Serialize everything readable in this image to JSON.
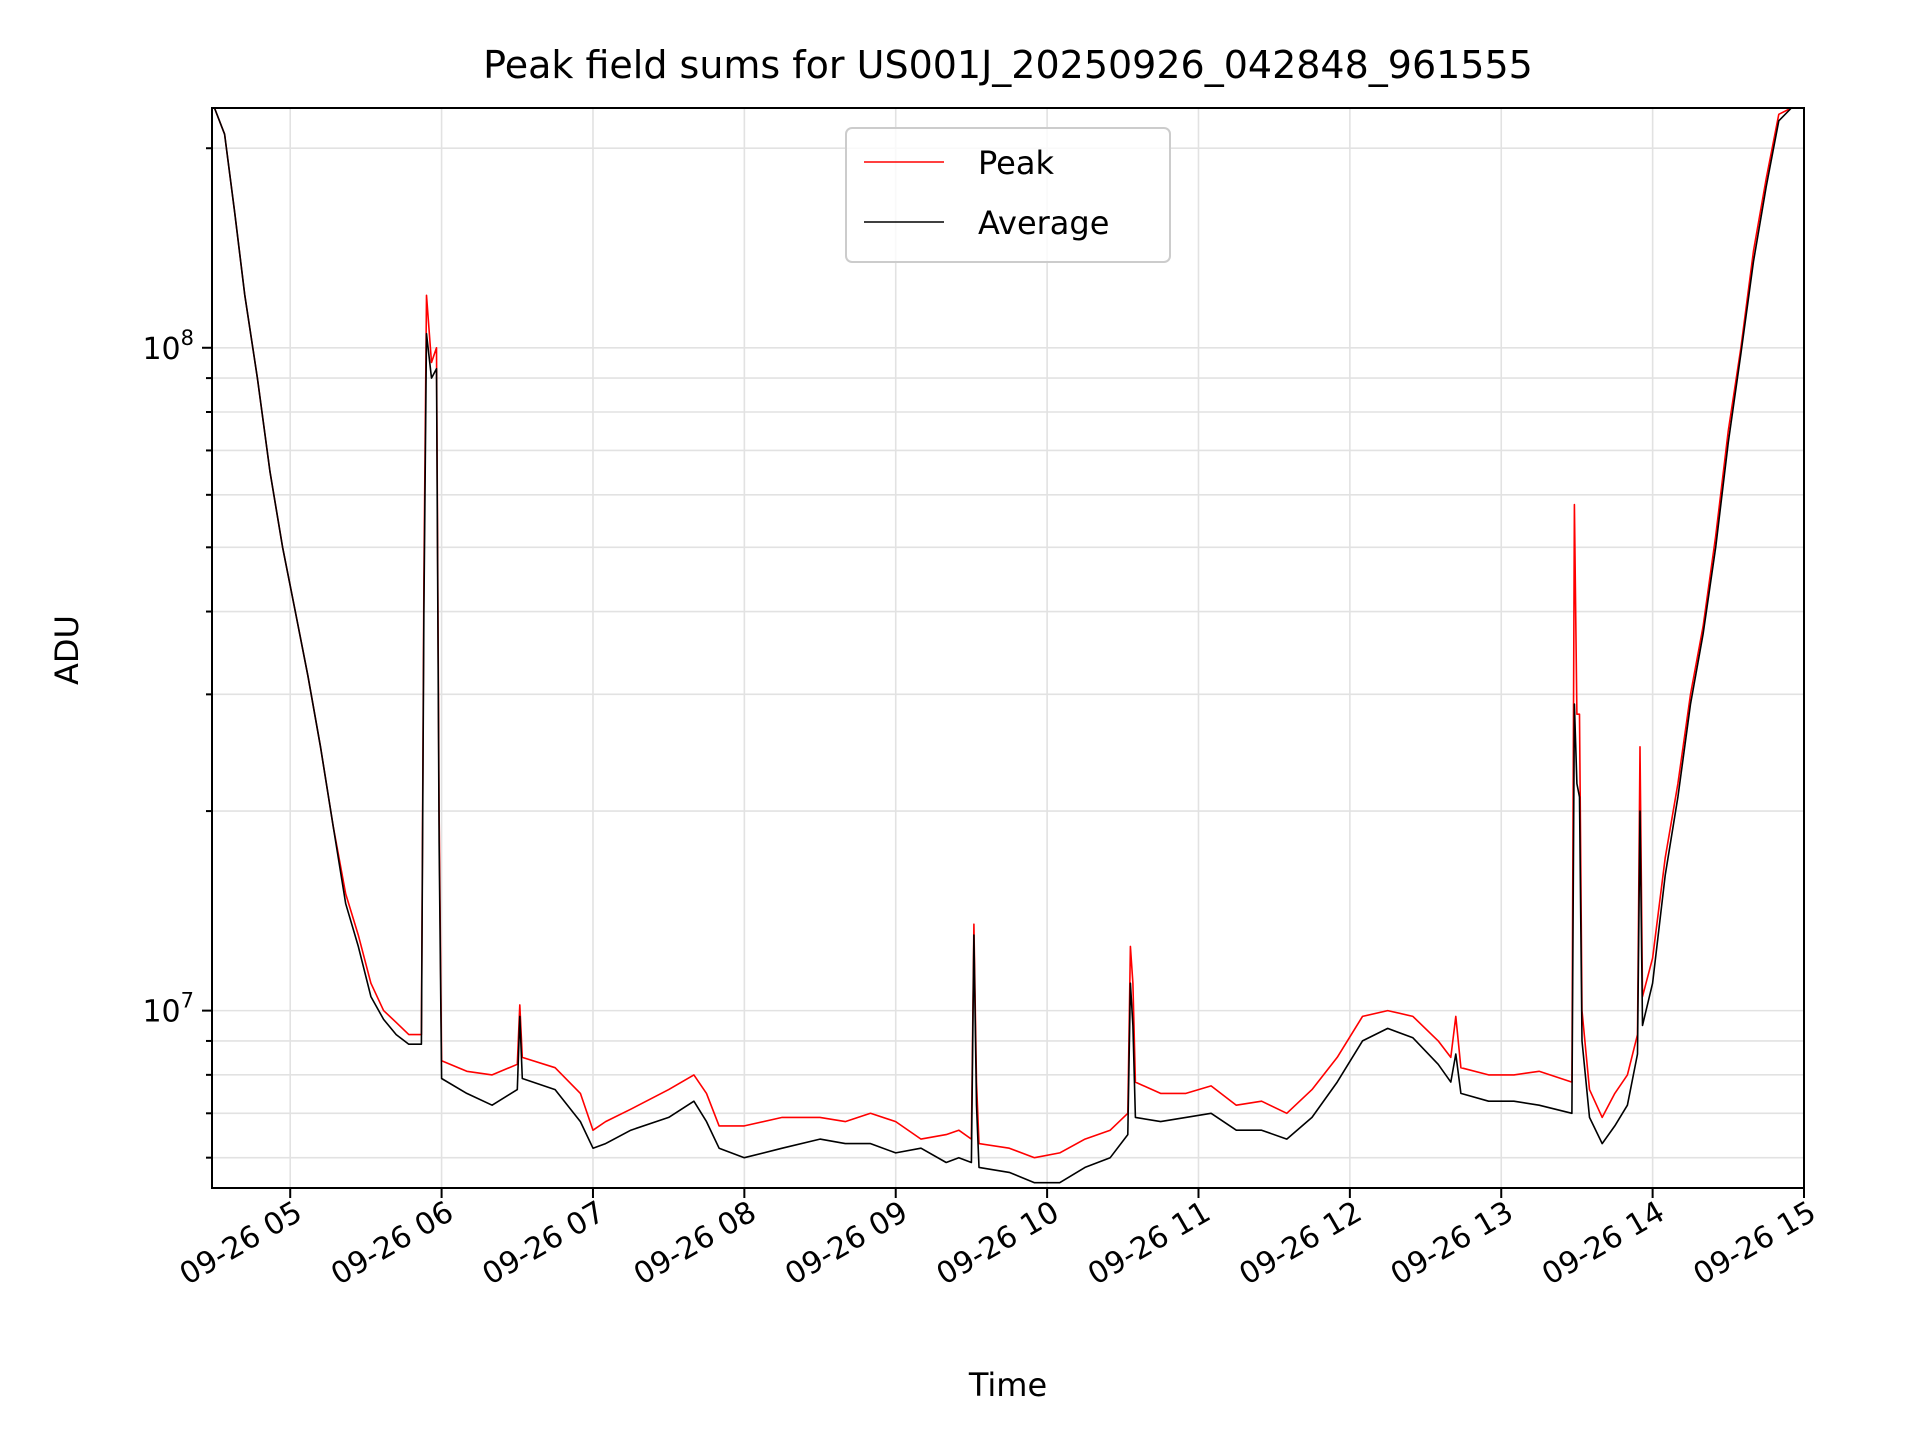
{
  "chart_data": {
    "type": "line",
    "title": "Peak field sums for US001J_20250926_042848_961555",
    "xlabel": "Time",
    "ylabel": "ADU",
    "y_scale": "log",
    "grid": "on",
    "legend_position": "top-center",
    "x_range": [
      "2025-09-26 04:29",
      "2025-09-26 15:00"
    ],
    "y_range": [
      5400000.0,
      230000000.0
    ],
    "x_ticks": [
      "09-26 05",
      "09-26 06",
      "09-26 07",
      "09-26 08",
      "09-26 09",
      "09-26 10",
      "09-26 11",
      "09-26 12",
      "09-26 13",
      "09-26 14",
      "09-26 15"
    ],
    "y_tick_labels": [
      {
        "base": "10",
        "exp": "7",
        "value": 10000000
      },
      {
        "base": "10",
        "exp": "8",
        "value": 100000000
      }
    ],
    "series": [
      {
        "name": "Peak",
        "color": "#ff0000",
        "points": [
          [
            "04:30",
            230000000.0
          ],
          [
            "04:34",
            210000000.0
          ],
          [
            "04:38",
            160000000.0
          ],
          [
            "04:42",
            120000000.0
          ],
          [
            "04:47",
            90000000.0
          ],
          [
            "04:52",
            65000000.0
          ],
          [
            "04:57",
            50000000.0
          ],
          [
            "05:02",
            40000000.0
          ],
          [
            "05:07",
            32000000.0
          ],
          [
            "05:12",
            25000000.0
          ],
          [
            "05:17",
            19000000.0
          ],
          [
            "05:22",
            15000000.0
          ],
          [
            "05:27",
            13000000.0
          ],
          [
            "05:32",
            11000000.0
          ],
          [
            "05:37",
            10000000.0
          ],
          [
            "05:42",
            9600000.0
          ],
          [
            "05:47",
            9200000.0
          ],
          [
            "05:52",
            9200000.0
          ],
          [
            "05:53",
            45000000.0
          ],
          [
            "05:54",
            120000000.0
          ],
          [
            "05:56",
            95000000.0
          ],
          [
            "05:58",
            100000000.0
          ],
          [
            "05:59",
            20000000.0
          ],
          [
            "06:00",
            8400000.0
          ],
          [
            "06:10",
            8100000.0
          ],
          [
            "06:20",
            8000000.0
          ],
          [
            "06:30",
            8300000.0
          ],
          [
            "06:31",
            10200000.0
          ],
          [
            "06:32",
            8500000.0
          ],
          [
            "06:45",
            8200000.0
          ],
          [
            "06:55",
            7500000.0
          ],
          [
            "07:00",
            6600000.0
          ],
          [
            "07:05",
            6800000.0
          ],
          [
            "07:15",
            7100000.0
          ],
          [
            "07:30",
            7600000.0
          ],
          [
            "07:40",
            8000000.0
          ],
          [
            "07:45",
            7500000.0
          ],
          [
            "07:50",
            6700000.0
          ],
          [
            "08:00",
            6700000.0
          ],
          [
            "08:15",
            6900000.0
          ],
          [
            "08:30",
            6900000.0
          ],
          [
            "08:40",
            6800000.0
          ],
          [
            "08:50",
            7000000.0
          ],
          [
            "09:00",
            6800000.0
          ],
          [
            "09:10",
            6400000.0
          ],
          [
            "09:20",
            6500000.0
          ],
          [
            "09:25",
            6600000.0
          ],
          [
            "09:30",
            6400000.0
          ],
          [
            "09:31",
            13500000.0
          ],
          [
            "09:32",
            7800000.0
          ],
          [
            "09:33",
            6300000.0
          ],
          [
            "09:45",
            6200000.0
          ],
          [
            "09:55",
            6000000.0
          ],
          [
            "10:05",
            6100000.0
          ],
          [
            "10:15",
            6400000.0
          ],
          [
            "10:25",
            6600000.0
          ],
          [
            "10:32",
            7000000.0
          ],
          [
            "10:33",
            12500000.0
          ],
          [
            "10:34",
            11000000.0
          ],
          [
            "10:35",
            7800000.0
          ],
          [
            "10:45",
            7500000.0
          ],
          [
            "10:55",
            7500000.0
          ],
          [
            "11:05",
            7700000.0
          ],
          [
            "11:15",
            7200000.0
          ],
          [
            "11:25",
            7300000.0
          ],
          [
            "11:35",
            7000000.0
          ],
          [
            "11:45",
            7600000.0
          ],
          [
            "11:55",
            8500000.0
          ],
          [
            "12:05",
            9800000.0
          ],
          [
            "12:15",
            10000000.0
          ],
          [
            "12:25",
            9800000.0
          ],
          [
            "12:35",
            9000000.0
          ],
          [
            "12:40",
            8500000.0
          ],
          [
            "12:42",
            9800000.0
          ],
          [
            "12:44",
            8200000.0
          ],
          [
            "12:55",
            8000000.0
          ],
          [
            "13:05",
            8000000.0
          ],
          [
            "13:15",
            8100000.0
          ],
          [
            "13:28",
            7800000.0
          ],
          [
            "13:29",
            58000000.0
          ],
          [
            "13:30",
            28000000.0
          ],
          [
            "13:31",
            28000000.0
          ],
          [
            "13:32",
            10000000.0
          ],
          [
            "13:35",
            7600000.0
          ],
          [
            "13:40",
            6900000.0
          ],
          [
            "13:45",
            7500000.0
          ],
          [
            "13:50",
            8000000.0
          ],
          [
            "13:54",
            9200000.0
          ],
          [
            "13:55",
            25000000.0
          ],
          [
            "13:56",
            10500000.0
          ],
          [
            "14:00",
            12000000.0
          ],
          [
            "14:05",
            17000000.0
          ],
          [
            "14:10",
            22000000.0
          ],
          [
            "14:15",
            30000000.0
          ],
          [
            "14:20",
            38000000.0
          ],
          [
            "14:25",
            52000000.0
          ],
          [
            "14:30",
            75000000.0
          ],
          [
            "14:35",
            100000000.0
          ],
          [
            "14:40",
            140000000.0
          ],
          [
            "14:45",
            180000000.0
          ],
          [
            "14:50",
            225000000.0
          ],
          [
            "14:55",
            230000000.0
          ],
          [
            "15:00",
            230000000.0
          ]
        ]
      },
      {
        "name": "Average",
        "color": "#000000",
        "points": [
          [
            "04:30",
            230000000.0
          ],
          [
            "04:34",
            210000000.0
          ],
          [
            "04:38",
            160000000.0
          ],
          [
            "04:42",
            120000000.0
          ],
          [
            "04:47",
            90000000.0
          ],
          [
            "04:52",
            65000000.0
          ],
          [
            "04:57",
            50000000.0
          ],
          [
            "05:02",
            40000000.0
          ],
          [
            "05:07",
            32000000.0
          ],
          [
            "05:12",
            25000000.0
          ],
          [
            "05:17",
            19000000.0
          ],
          [
            "05:22",
            14500000.0
          ],
          [
            "05:27",
            12500000.0
          ],
          [
            "05:32",
            10500000.0
          ],
          [
            "05:37",
            9700000.0
          ],
          [
            "05:42",
            9200000.0
          ],
          [
            "05:47",
            8900000.0
          ],
          [
            "05:52",
            8900000.0
          ],
          [
            "05:53",
            40000000.0
          ],
          [
            "05:54",
            105000000.0
          ],
          [
            "05:56",
            90000000.0
          ],
          [
            "05:58",
            93000000.0
          ],
          [
            "05:59",
            18000000.0
          ],
          [
            "06:00",
            7900000.0
          ],
          [
            "06:10",
            7500000.0
          ],
          [
            "06:20",
            7200000.0
          ],
          [
            "06:30",
            7600000.0
          ],
          [
            "06:31",
            9800000.0
          ],
          [
            "06:32",
            7900000.0
          ],
          [
            "06:45",
            7600000.0
          ],
          [
            "06:55",
            6800000.0
          ],
          [
            "07:00",
            6200000.0
          ],
          [
            "07:05",
            6300000.0
          ],
          [
            "07:15",
            6600000.0
          ],
          [
            "07:30",
            6900000.0
          ],
          [
            "07:40",
            7300000.0
          ],
          [
            "07:45",
            6800000.0
          ],
          [
            "07:50",
            6200000.0
          ],
          [
            "08:00",
            6000000.0
          ],
          [
            "08:15",
            6200000.0
          ],
          [
            "08:30",
            6400000.0
          ],
          [
            "08:40",
            6300000.0
          ],
          [
            "08:50",
            6300000.0
          ],
          [
            "09:00",
            6100000.0
          ],
          [
            "09:10",
            6200000.0
          ],
          [
            "09:20",
            5900000.0
          ],
          [
            "09:25",
            6000000.0
          ],
          [
            "09:30",
            5900000.0
          ],
          [
            "09:31",
            13000000.0
          ],
          [
            "09:32",
            7200000.0
          ],
          [
            "09:33",
            5800000.0
          ],
          [
            "09:45",
            5700000.0
          ],
          [
            "09:55",
            5500000.0
          ],
          [
            "10:05",
            5500000.0
          ],
          [
            "10:15",
            5800000.0
          ],
          [
            "10:25",
            6000000.0
          ],
          [
            "10:32",
            6500000.0
          ],
          [
            "10:33",
            11000000.0
          ],
          [
            "10:34",
            9500000.0
          ],
          [
            "10:35",
            6900000.0
          ],
          [
            "10:45",
            6800000.0
          ],
          [
            "10:55",
            6900000.0
          ],
          [
            "11:05",
            7000000.0
          ],
          [
            "11:15",
            6600000.0
          ],
          [
            "11:25",
            6600000.0
          ],
          [
            "11:35",
            6400000.0
          ],
          [
            "11:45",
            6900000.0
          ],
          [
            "11:55",
            7800000.0
          ],
          [
            "12:05",
            9000000.0
          ],
          [
            "12:15",
            9400000.0
          ],
          [
            "12:25",
            9100000.0
          ],
          [
            "12:35",
            8300000.0
          ],
          [
            "12:40",
            7800000.0
          ],
          [
            "12:42",
            8600000.0
          ],
          [
            "12:44",
            7500000.0
          ],
          [
            "12:55",
            7300000.0
          ],
          [
            "13:05",
            7300000.0
          ],
          [
            "13:15",
            7200000.0
          ],
          [
            "13:28",
            7000000.0
          ],
          [
            "13:29",
            29000000.0
          ],
          [
            "13:30",
            22000000.0
          ],
          [
            "13:31",
            21000000.0
          ],
          [
            "13:32",
            9000000.0
          ],
          [
            "13:35",
            6900000.0
          ],
          [
            "13:40",
            6300000.0
          ],
          [
            "13:45",
            6700000.0
          ],
          [
            "13:50",
            7200000.0
          ],
          [
            "13:54",
            8600000.0
          ],
          [
            "13:55",
            20000000.0
          ],
          [
            "13:56",
            9500000.0
          ],
          [
            "14:00",
            11000000.0
          ],
          [
            "14:05",
            16000000.0
          ],
          [
            "14:10",
            21000000.0
          ],
          [
            "14:15",
            29000000.0
          ],
          [
            "14:20",
            37000000.0
          ],
          [
            "14:25",
            50000000.0
          ],
          [
            "14:30",
            72000000.0
          ],
          [
            "14:35",
            98000000.0
          ],
          [
            "14:40",
            135000000.0
          ],
          [
            "14:45",
            175000000.0
          ],
          [
            "14:50",
            220000000.0
          ],
          [
            "14:55",
            230000000.0
          ],
          [
            "15:00",
            230000000.0
          ]
        ]
      }
    ]
  }
}
